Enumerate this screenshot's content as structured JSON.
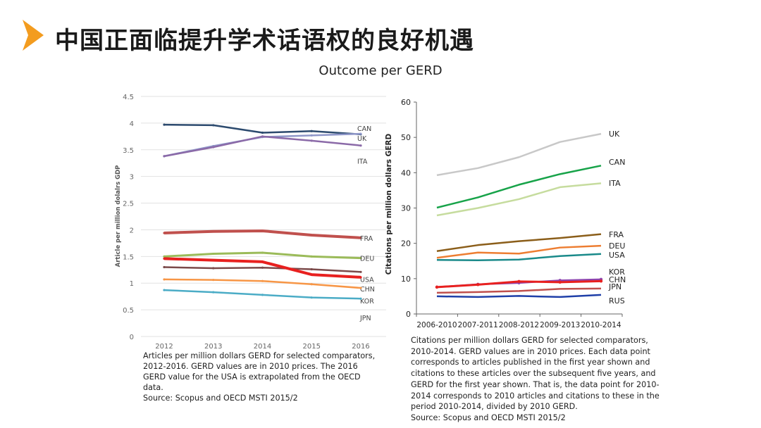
{
  "header": {
    "title": "中国正面临提升学术话语权的良好机遇",
    "subtitle": "Outcome per GERD"
  },
  "colors": {
    "accent": "#f39c1f",
    "CAN": "#2c4a6e",
    "UK": "#8f97c9",
    "ITA": "#8b6aa8",
    "FRA": "#c0504d",
    "DEU": "#9bbb59",
    "USA": "#7b4a4a",
    "CHN": "#e8201f",
    "KOR": "#f79646",
    "JPN": "#4bacc6",
    "r_UK": "#c8c8c8",
    "r_CAN": "#17a349",
    "r_ITA": "#c6dc9e",
    "r_FRA": "#8b5e1a",
    "r_DEU": "#ed7d31",
    "r_USA": "#1a8a8a",
    "r_KOR": "#8e44ad",
    "r_CHN": "#e8201f",
    "r_JPN": "#c0504d",
    "r_RUS": "#1f3fa8"
  },
  "chart_data": [
    {
      "type": "line",
      "ylabel": "Article per million dolalrs GDP",
      "xlabel": "",
      "x": [
        "2012",
        "2013",
        "2014",
        "2015",
        "2016"
      ],
      "ylim": [
        0,
        4.5
      ],
      "yticks": [
        "0",
        "0.5",
        "1",
        "1.5",
        "2",
        "2.5",
        "3",
        "3.5",
        "4",
        "4.5"
      ],
      "grid": true,
      "series": [
        {
          "name": "CAN",
          "values": [
            3.97,
            3.96,
            3.82,
            3.85,
            3.79
          ]
        },
        {
          "name": "UK",
          "values": [
            3.38,
            3.57,
            3.74,
            3.77,
            3.8
          ]
        },
        {
          "name": "ITA",
          "values": [
            3.38,
            3.55,
            3.75,
            3.67,
            3.58
          ]
        },
        {
          "name": "FRA",
          "values": [
            1.94,
            1.97,
            1.98,
            1.9,
            1.85
          ]
        },
        {
          "name": "DEU",
          "values": [
            1.5,
            1.55,
            1.57,
            1.5,
            1.47
          ]
        },
        {
          "name": "USA",
          "values": [
            1.3,
            1.28,
            1.29,
            1.26,
            1.21
          ]
        },
        {
          "name": "CHN",
          "values": [
            1.46,
            1.43,
            1.4,
            1.16,
            1.11
          ]
        },
        {
          "name": "KOR",
          "values": [
            1.07,
            1.06,
            1.04,
            0.98,
            0.91
          ]
        },
        {
          "name": "JPN",
          "values": [
            0.87,
            0.83,
            0.78,
            0.73,
            0.71
          ]
        }
      ],
      "caption": "Articles per million dollars GERD for selected comparators, 2012-2016. GERD values are in 2010 prices. The 2016 GERD value for the USA is extrapolated from the OECD data.\nSource: Scopus and OECD MSTI 2015/2"
    },
    {
      "type": "line",
      "ylabel": "Citations per million dollars GERD",
      "xlabel": "",
      "x": [
        "2006-2010",
        "2007-2011",
        "2008-2012",
        "2009-2013",
        "2010-2014"
      ],
      "ylim": [
        0,
        60
      ],
      "yticks": [
        "0",
        "10",
        "20",
        "30",
        "40",
        "50",
        "60"
      ],
      "grid": false,
      "series": [
        {
          "name": "UK",
          "values": [
            39.3,
            41.3,
            44.4,
            48.7,
            51.0
          ]
        },
        {
          "name": "CAN",
          "values": [
            30.1,
            33.0,
            36.6,
            39.6,
            42.0
          ]
        },
        {
          "name": "ITA",
          "values": [
            27.9,
            30.0,
            32.5,
            35.9,
            37.0
          ]
        },
        {
          "name": "FRA",
          "values": [
            17.8,
            19.5,
            20.6,
            21.5,
            22.6
          ]
        },
        {
          "name": "DEU",
          "values": [
            15.9,
            17.4,
            17.1,
            18.8,
            19.3
          ]
        },
        {
          "name": "USA",
          "values": [
            15.3,
            15.2,
            15.4,
            16.4,
            17.0
          ]
        },
        {
          "name": "KOR",
          "values": [
            7.6,
            8.4,
            8.8,
            9.5,
            9.8
          ]
        },
        {
          "name": "CHN",
          "values": [
            7.6,
            8.3,
            9.2,
            9.0,
            9.3
          ]
        },
        {
          "name": "JPN",
          "values": [
            6.0,
            6.2,
            6.5,
            7.1,
            7.2
          ]
        },
        {
          "name": "RUS",
          "values": [
            5.0,
            4.8,
            5.1,
            4.8,
            5.4
          ]
        }
      ],
      "caption": "Citations per million dollars GERD for selected comparators, 2010-2014. GERD values are in 2010 prices. Each data point corresponds to articles published in the first year shown and citations to these articles over the subsequent five years, and GERD for the first year shown. That is, the data point for 2010-2014 corresponds to 2010 articles and citations to these in the period 2010-2014, divided by 2010 GERD.\nSource: Scopus and OECD MSTI 2015/2"
    }
  ]
}
